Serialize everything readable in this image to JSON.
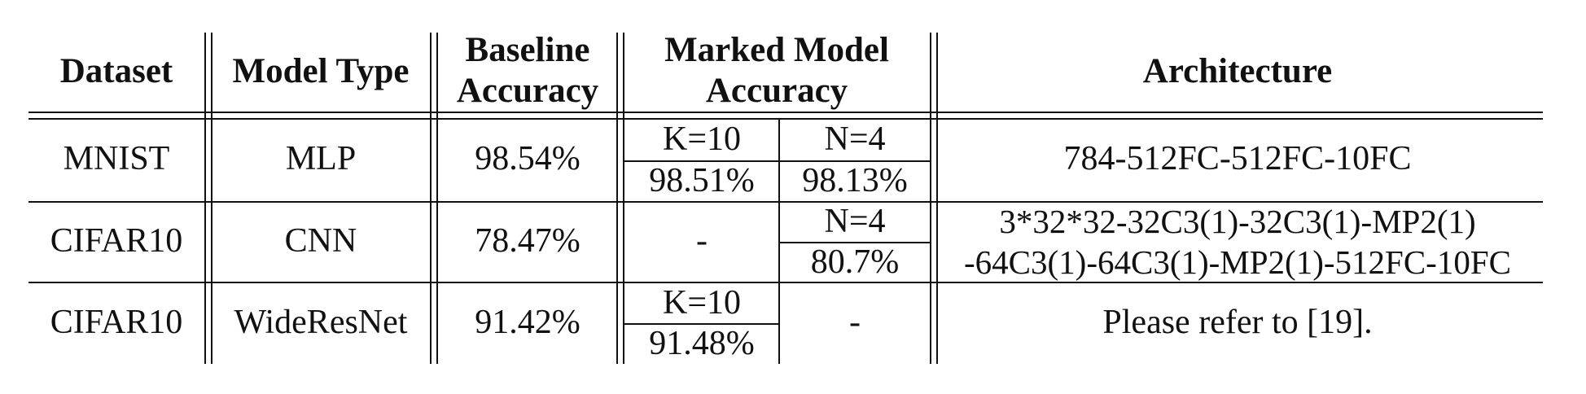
{
  "headers": {
    "dataset": "Dataset",
    "model_type": "Model Type",
    "baseline_1": "Baseline",
    "baseline_2": "Accuracy",
    "marked_1": "Marked Model",
    "marked_2": "Accuracy",
    "architecture": "Architecture"
  },
  "rows": [
    {
      "dataset": "MNIST",
      "model_type": "MLP",
      "baseline": "98.54%",
      "k_label": "K=10",
      "k_value": "98.51%",
      "n_label": "N=4",
      "n_value": "98.13%",
      "architecture": "784-512FC-512FC-10FC"
    },
    {
      "dataset": "CIFAR10",
      "model_type": "CNN",
      "baseline": "78.47%",
      "k_dash": "-",
      "n_label": "N=4",
      "n_value": "80.7%",
      "architecture_1": "3*32*32-32C3(1)-32C3(1)-MP2(1)",
      "architecture_2": "-64C3(1)-64C3(1)-MP2(1)-512FC-10FC"
    },
    {
      "dataset": "CIFAR10",
      "model_type": "WideResNet",
      "baseline": "91.42%",
      "k_label": "K=10",
      "k_value": "91.48%",
      "n_dash": "-",
      "architecture": "Please refer to [19]."
    }
  ]
}
